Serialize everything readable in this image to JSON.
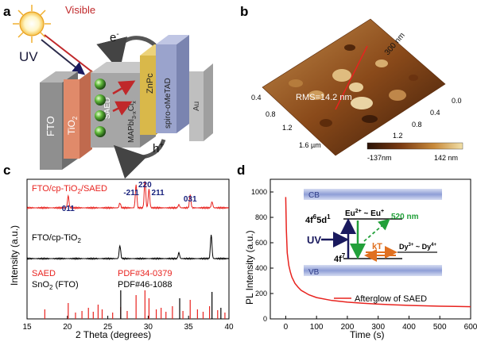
{
  "figure": {
    "panel_labels": [
      "a",
      "b",
      "c",
      "d"
    ]
  },
  "panel_a": {
    "labels": {
      "visible": "Visible",
      "uv": "UV",
      "electron": "e",
      "electron_sup": "-",
      "hole": "h",
      "hole_sup": "+",
      "fto": "FTO",
      "tio2": "TiO",
      "tio2_sub": "2",
      "saed": "SAED",
      "perovskite": "MAPbI",
      "perovskite_sub1": "3-x",
      "perovskite_cl": "Cl",
      "perovskite_sub2": "x",
      "znpc": "ZnPc",
      "spiro": "spiro-oMeTAD",
      "au": "Au"
    },
    "colors": {
      "visible": "#c0282a",
      "fto": "#8f8f8f",
      "tio2": "#e08a6a",
      "perovskite": "#a6a6a6",
      "znpc": "#d9b84a",
      "spiro": "#9aa3cc",
      "au": "#bfbfbf"
    }
  },
  "panel_b": {
    "rms_label": "RMS=14.2 nm",
    "scale_label": "300 nm",
    "axis_ticks_left": [
      "0.4",
      "0.8",
      "1.2",
      "1.6 µm"
    ],
    "axis_ticks_right": [
      "0.0",
      "0.4",
      "0.8",
      "1.2"
    ],
    "colorbar": {
      "min_label": "-137nm",
      "max_label": "142 nm",
      "colors": [
        "#2a1206",
        "#7a3a12",
        "#c88a3a",
        "#f2e0a8"
      ]
    }
  },
  "panel_c": {
    "ylabel": "Intensity (a.u.)",
    "xlabel": "2 Theta (degrees)",
    "labels": {
      "trace_top": "FTO/cp-TiO",
      "trace_top_sub": "2",
      "trace_top_tail": "/SAED",
      "trace_mid": "FTO/cp-TiO",
      "trace_mid_sub": "2",
      "ref_saed": "SAED",
      "ref_saed_pdf": "PDF#34-0379",
      "ref_sno2": "SnO",
      "ref_sno2_sub": "2",
      "ref_sno2_tail": " (FTO)",
      "ref_sno2_pdf": "PDF#46-1088"
    },
    "colors": {
      "saed": "#e8231f",
      "cptio2": "#000000",
      "hkl": "#1a237e"
    }
  },
  "panel_d": {
    "ylabel": "PL Intensity (a.u.)",
    "xlabel": "Time (s)",
    "legend": "Afterglow of SAED",
    "inset": {
      "cb": "CB",
      "vb": "VB",
      "excited": "4f",
      "excited_sup": "6",
      "excited_tail": "5d",
      "excited_sup2": "1",
      "ground": "4f",
      "ground_sup": "7",
      "eu": "Eu",
      "eu_sup": "2+",
      "eu_mid": " ~ Eu",
      "eu_sup2": "+",
      "dy": "Dy",
      "dy_sup": "3+",
      "dy_mid": " ~ Dy",
      "dy_sup2": "4+",
      "uv": "UV",
      "emission": "520 nm",
      "kt": "kT"
    },
    "colors": {
      "curve": "#e8231f",
      "uv_arrow": "#1a1a5e",
      "emission": "#22a03a",
      "kt": "#e07020",
      "band": "#9aa8d8"
    }
  },
  "chart_data": [
    {
      "type": "line",
      "title": "",
      "xlabel": "2 Theta (degrees)",
      "ylabel": "Intensity (a.u.)",
      "xlim": [
        15,
        40
      ],
      "x_ticks": [
        15,
        20,
        25,
        30,
        35,
        40
      ],
      "y_ticks_shown": false,
      "series": [
        {
          "name": "FTO/cp-TiO2/SAED",
          "peaks": [
            {
              "x": 20.1,
              "height": 0.45,
              "hkl": "011"
            },
            {
              "x": 26.5,
              "height": 0.18
            },
            {
              "x": 28.5,
              "height": 0.85,
              "hkl": "-211"
            },
            {
              "x": 29.6,
              "height": 1.0,
              "hkl": "220"
            },
            {
              "x": 30.1,
              "height": 0.7,
              "hkl": "211"
            },
            {
              "x": 33.8,
              "height": 0.12
            },
            {
              "x": 35.2,
              "height": 0.5,
              "hkl": "031"
            },
            {
              "x": 37.9,
              "height": 0.22
            }
          ]
        },
        {
          "name": "FTO/cp-TiO2",
          "peaks": [
            {
              "x": 26.5,
              "height": 0.55
            },
            {
              "x": 33.8,
              "height": 0.25
            },
            {
              "x": 37.8,
              "height": 1.0
            }
          ]
        },
        {
          "name": "SAED PDF#34-0379",
          "sticks": [
            17.2,
            20.1,
            21.0,
            21.8,
            22.6,
            23.2,
            23.8,
            24.3,
            25.6,
            26.6,
            27.4,
            28.5,
            29.6,
            30.1,
            31.0,
            31.6,
            32.2,
            33.0,
            34.3,
            35.2,
            36.1,
            36.8,
            37.6,
            38.6,
            39.5
          ]
        },
        {
          "name": "SnO2 (FTO) PDF#46-1088",
          "sticks": [
            26.6,
            33.9,
            37.9,
            39.0
          ]
        }
      ]
    },
    {
      "type": "line",
      "title": "",
      "xlabel": "Time (s)",
      "ylabel": "PL Intensity (a.u.)",
      "xlim": [
        -50,
        600
      ],
      "ylim": [
        0,
        1100
      ],
      "x_ticks": [
        0,
        100,
        200,
        300,
        400,
        500,
        600
      ],
      "y_ticks": [
        0,
        200,
        400,
        600,
        800,
        1000
      ],
      "series": [
        {
          "name": "Afterglow of SAED",
          "x": [
            0,
            2,
            5,
            10,
            15,
            20,
            30,
            40,
            50,
            75,
            100,
            150,
            200,
            250,
            300,
            350,
            400,
            450,
            500,
            550,
            600
          ],
          "y": [
            960,
            700,
            520,
            420,
            370,
            330,
            280,
            250,
            225,
            190,
            168,
            145,
            132,
            123,
            116,
            111,
            106,
            103,
            100,
            98,
            96
          ]
        }
      ]
    }
  ]
}
